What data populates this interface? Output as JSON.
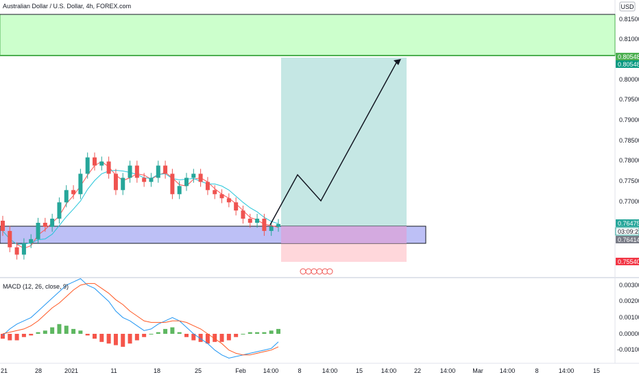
{
  "header": {
    "title": "Australian Dollar / U.S. Dollar, 4h, FOREX.com",
    "currency": "USD"
  },
  "price_axis": {
    "ticks": [
      "0.81500",
      "0.81000",
      "0.80500",
      "0.80000",
      "0.79500",
      "0.79000",
      "0.78500",
      "0.78000",
      "0.77500",
      "0.77000",
      "0.76500"
    ],
    "tags": {
      "target_upper": "0.80548",
      "target_lower": "0.80548",
      "current": "0.76475",
      "countdown": "03:09:21",
      "entry": "0.76414",
      "stop": "0.75540"
    }
  },
  "macd_axis": {
    "ticks": [
      "0.00300",
      "0.00200",
      "0.00100",
      "0.00000",
      "-0.00100"
    ]
  },
  "macd_panel": {
    "label": "MACD (12, 26, close, 9)"
  },
  "time_axis": {
    "labels": [
      "21",
      "28",
      "2021",
      "11",
      "18",
      "25",
      "Feb",
      "14:00",
      "8",
      "14:00",
      "15",
      "14:00",
      "22",
      "14:00",
      "Mar",
      "14:00",
      "8",
      "14:00",
      "15"
    ]
  },
  "colors": {
    "bull": "#26a69a",
    "bear": "#ef5350",
    "target_zone": "#ccffcc",
    "target_line": "#4caf50",
    "support_zone": "#b2b5f5",
    "profit_zone": "#b2dfdb",
    "loss_zone": "#ffcdd2",
    "macd_line": "#2196f3",
    "signal_line": "#ff5722",
    "hist_pos": "#4caf50",
    "hist_neg": "#f44336",
    "ma_fast": "#ff5252",
    "ma_slow": "#26c6da"
  },
  "chart_data": {
    "type": "candlestick",
    "symbol": "AUDUSD",
    "interval": "4h",
    "ylim": [
      0.753,
      0.8163
    ],
    "candles_approx": [
      [
        0.7655,
        0.763
      ],
      [
        0.763,
        0.759
      ],
      [
        0.759,
        0.7572
      ],
      [
        0.7572,
        0.76
      ],
      [
        0.76,
        0.761
      ],
      [
        0.761,
        0.765
      ],
      [
        0.765,
        0.764
      ],
      [
        0.764,
        0.766
      ],
      [
        0.766,
        0.77
      ],
      [
        0.77,
        0.773
      ],
      [
        0.773,
        0.772
      ],
      [
        0.772,
        0.777
      ],
      [
        0.777,
        0.781
      ],
      [
        0.781,
        0.779
      ],
      [
        0.779,
        0.78
      ],
      [
        0.78,
        0.777
      ],
      [
        0.777,
        0.773
      ],
      [
        0.773,
        0.776
      ],
      [
        0.776,
        0.779
      ],
      [
        0.779,
        0.776
      ],
      [
        0.776,
        0.775
      ],
      [
        0.775,
        0.776
      ],
      [
        0.776,
        0.779
      ],
      [
        0.779,
        0.777
      ],
      [
        0.777,
        0.772
      ],
      [
        0.772,
        0.774
      ],
      [
        0.774,
        0.776
      ],
      [
        0.776,
        0.777
      ],
      [
        0.777,
        0.775
      ],
      [
        0.775,
        0.773
      ],
      [
        0.773,
        0.772
      ],
      [
        0.772,
        0.771
      ],
      [
        0.771,
        0.77
      ],
      [
        0.77,
        0.768
      ],
      [
        0.768,
        0.766
      ],
      [
        0.766,
        0.765
      ],
      [
        0.765,
        0.766
      ],
      [
        0.766,
        0.763
      ],
      [
        0.763,
        0.764
      ],
      [
        0.764,
        0.7647
      ]
    ],
    "levels": {
      "target_zone": [
        0.8055,
        0.8153
      ],
      "support_zone": [
        0.761,
        0.7652
      ],
      "position_entry": 0.7641,
      "position_target": 0.8055,
      "position_stop": 0.7554
    },
    "projection_path": [
      [
        0.7647,
        "Feb 3"
      ],
      [
        0.7765,
        "Feb 5"
      ],
      [
        0.7702,
        "Feb 9"
      ],
      [
        0.8049,
        "Feb 19"
      ]
    ],
    "macd": {
      "name": "MACD (12, 26, close, 9)",
      "ylim": [
        -0.0015,
        0.0034
      ],
      "macd": [
        -0.0001,
        0.0003,
        0.0006,
        0.0008,
        0.001,
        0.0014,
        0.0018,
        0.0022,
        0.0026,
        0.003,
        0.0032,
        0.0034,
        0.003,
        0.0028,
        0.0024,
        0.002,
        0.0014,
        0.001,
        0.0008,
        0.0005,
        0.0002,
        0.0003,
        0.0006,
        0.0008,
        0.001,
        0.0008,
        0.0004,
        0.0,
        -0.0003,
        -0.0006,
        -0.001,
        -0.0013,
        -0.0015,
        -0.0014,
        -0.0013,
        -0.0012,
        -0.0011,
        -0.001,
        -0.0009,
        -0.0005
      ],
      "signal": [
        0.0,
        0.0001,
        0.0002,
        0.0003,
        0.0005,
        0.0008,
        0.0012,
        0.0016,
        0.0019,
        0.0023,
        0.0027,
        0.003,
        0.0031,
        0.0031,
        0.0028,
        0.0025,
        0.0021,
        0.0018,
        0.0014,
        0.0011,
        0.0008,
        0.0007,
        0.0007,
        0.0007,
        0.0008,
        0.0008,
        0.0007,
        0.0005,
        0.0003,
        0.0,
        -0.0003,
        -0.0006,
        -0.001,
        -0.0012,
        -0.0013,
        -0.0013,
        -0.0012,
        -0.0011,
        -0.001,
        -0.0008
      ],
      "histogram": [
        -0.0003,
        -0.0004,
        -0.0004,
        -0.0002,
        -0.0001,
        0.0001,
        0.0002,
        0.0004,
        0.0006,
        0.0005,
        0.0003,
        0.0002,
        -0.0001,
        -0.0003,
        -0.0005,
        -0.0006,
        -0.0007,
        -0.0008,
        -0.0006,
        -0.0004,
        -0.0002,
        0.0,
        0.0001,
        0.0003,
        0.0004,
        0.0001,
        -0.0002,
        -0.0004,
        -0.0005,
        -0.0006,
        -0.0005,
        -0.0005,
        -0.0004,
        -0.0002,
        0.0,
        0.0001,
        0.0001,
        0.0001,
        0.0002,
        0.0003
      ]
    }
  }
}
